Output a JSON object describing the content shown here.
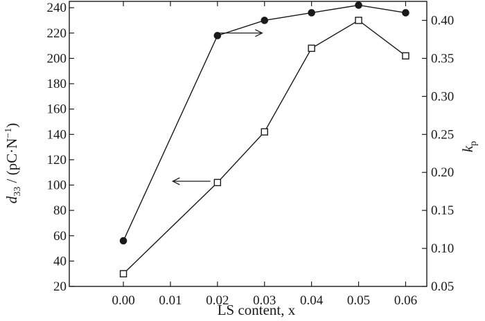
{
  "chart_data": {
    "type": "line",
    "title": "",
    "x": [
      0.0,
      0.02,
      0.03,
      0.04,
      0.05,
      0.06
    ],
    "xlabel": "LS content, x",
    "xlim": [
      -0.0115,
      0.0645
    ],
    "xticks": [
      0.0,
      0.01,
      0.02,
      0.03,
      0.04,
      0.05,
      0.06
    ],
    "xtick_labels": [
      "0.00",
      "0.01",
      "0.02",
      "0.03",
      "0.04",
      "0.05",
      "0.06"
    ],
    "left_axis": {
      "label_main": "d",
      "label_sub": "33",
      "label_rest": " / (pC·N",
      "label_sup": "−1",
      "label_close": ")",
      "lim": [
        20,
        245
      ],
      "ticks": [
        20,
        40,
        60,
        80,
        100,
        120,
        140,
        160,
        180,
        200,
        220,
        240
      ],
      "tick_labels": [
        "20",
        "40",
        "60",
        "80",
        "100",
        "120",
        "140",
        "160",
        "180",
        "200",
        "220",
        "240"
      ]
    },
    "right_axis": {
      "label_main": "k",
      "label_sub": "p",
      "lim": [
        0.05,
        0.425
      ],
      "ticks": [
        0.05,
        0.1,
        0.15,
        0.2,
        0.25,
        0.3,
        0.35,
        0.4
      ],
      "tick_labels": [
        "0.05",
        "0.10",
        "0.15",
        "0.20",
        "0.25",
        "0.30",
        "0.35",
        "0.40"
      ]
    },
    "series": [
      {
        "axis": "left",
        "marker": "open-square",
        "values": [
          30,
          102,
          142,
          208,
          230,
          202
        ]
      },
      {
        "axis": "right",
        "marker": "filled-circle",
        "values": [
          0.11,
          0.38,
          0.4,
          0.41,
          0.42,
          0.41
        ]
      }
    ],
    "annotations": [
      {
        "type": "arrow",
        "direction": "right",
        "from": [
          0.0205,
          220
        ],
        "to": [
          0.0295,
          220
        ],
        "axis": "left"
      },
      {
        "type": "arrow",
        "direction": "left",
        "from": [
          0.0185,
          103
        ],
        "to": [
          0.0105,
          103
        ],
        "axis": "left"
      }
    ],
    "grid": false,
    "legend": "none",
    "colors": {
      "line": "#1a1a1a",
      "marker_fill_filled": "#1a1a1a",
      "marker_fill_open": "#ffffff"
    }
  }
}
